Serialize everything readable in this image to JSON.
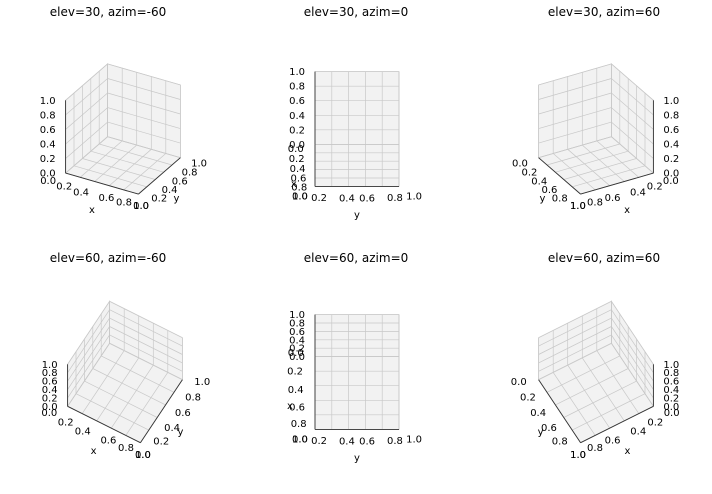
{
  "figure": {
    "layout": "2 rows x 3 columns",
    "pane_color": "#f2f2f2",
    "grid_color": "#c8c8c8",
    "edge_color": "#d0d0d0"
  },
  "chart_data": [
    {
      "type": "3d-axes",
      "title": "elev=30, azim=-60",
      "elev": 30,
      "azim": -60,
      "xlabel": "x",
      "ylabel": "y",
      "zlabel": "",
      "xlim": [
        0,
        1
      ],
      "ylim": [
        0,
        1
      ],
      "zlim": [
        0,
        1
      ],
      "ticks": [
        "0.0",
        "0.2",
        "0.4",
        "0.6",
        "0.8",
        "1.0"
      ],
      "grid": true
    },
    {
      "type": "3d-axes",
      "title": "elev=30, azim=0",
      "elev": 30,
      "azim": 0,
      "xlabel": "x",
      "ylabel": "y",
      "zlabel": "",
      "xlim": [
        0,
        1
      ],
      "ylim": [
        0,
        1
      ],
      "zlim": [
        0,
        1
      ],
      "ticks": [
        "0.0",
        "0.2",
        "0.4",
        "0.6",
        "0.8",
        "1.0"
      ],
      "grid": true
    },
    {
      "type": "3d-axes",
      "title": "elev=30, azim=60",
      "elev": 30,
      "azim": 60,
      "xlabel": "x",
      "ylabel": "y",
      "zlabel": "",
      "xlim": [
        0,
        1
      ],
      "ylim": [
        0,
        1
      ],
      "zlim": [
        0,
        1
      ],
      "ticks": [
        "0.0",
        "0.2",
        "0.4",
        "0.6",
        "0.8",
        "1.0"
      ],
      "grid": true
    },
    {
      "type": "3d-axes",
      "title": "elev=60, azim=-60",
      "elev": 60,
      "azim": -60,
      "xlabel": "x",
      "ylabel": "y",
      "zlabel": "",
      "xlim": [
        0,
        1
      ],
      "ylim": [
        0,
        1
      ],
      "zlim": [
        0,
        1
      ],
      "ticks": [
        "0.0",
        "0.2",
        "0.4",
        "0.6",
        "0.8",
        "1.0"
      ],
      "grid": true
    },
    {
      "type": "3d-axes",
      "title": "elev=60, azim=0",
      "elev": 60,
      "azim": 0,
      "xlabel": "x",
      "ylabel": "y",
      "zlabel": "",
      "xlim": [
        0,
        1
      ],
      "ylim": [
        0,
        1
      ],
      "zlim": [
        0,
        1
      ],
      "ticks": [
        "0.0",
        "0.2",
        "0.4",
        "0.6",
        "0.8",
        "1.0"
      ],
      "grid": true
    },
    {
      "type": "3d-axes",
      "title": "elev=60, azim=60",
      "elev": 60,
      "azim": 60,
      "xlabel": "x",
      "ylabel": "y",
      "zlabel": "",
      "xlim": [
        0,
        1
      ],
      "ylim": [
        0,
        1
      ],
      "zlim": [
        0,
        1
      ],
      "ticks": [
        "0.0",
        "0.2",
        "0.4",
        "0.6",
        "0.8",
        "1.0"
      ],
      "grid": true
    }
  ]
}
